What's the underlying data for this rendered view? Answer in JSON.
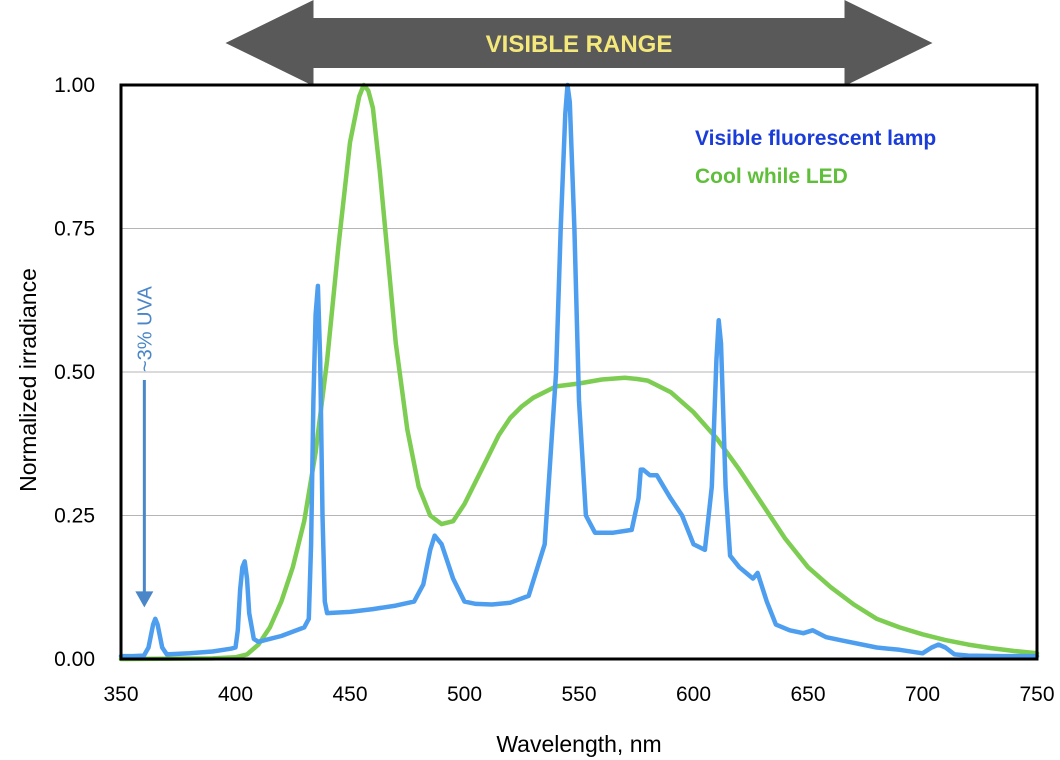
{
  "chart_data": {
    "type": "line",
    "title": "",
    "xlabel": "Wavelength, nm",
    "ylabel": "Normalized irradiance",
    "xlim": [
      350,
      750
    ],
    "ylim": [
      0,
      1
    ],
    "x_ticks": [
      "350",
      "400",
      "450",
      "500",
      "550",
      "600",
      "650",
      "700",
      "750"
    ],
    "y_ticks": [
      "0.00",
      "0.25",
      "0.50",
      "0.75",
      "1.00"
    ],
    "grid": "horizontal",
    "legend_position": "top-right",
    "banner": {
      "label": "VISIBLE RANGE",
      "x_start": 400,
      "x_end": 700,
      "fill_color": "#595959",
      "text_color": "#f5e87a"
    },
    "annotation": {
      "text": "~3% UVA",
      "x": 365,
      "y": 0.09,
      "color": "#4a86c8"
    },
    "series": [
      {
        "name": "Visible fluorescent lamp",
        "color": "#4e9ef0",
        "legend_color": "#1a3cd8",
        "points": [
          [
            350,
            0.005
          ],
          [
            355,
            0.005
          ],
          [
            360,
            0.006
          ],
          [
            362,
            0.02
          ],
          [
            364,
            0.06
          ],
          [
            365,
            0.07
          ],
          [
            366,
            0.06
          ],
          [
            368,
            0.02
          ],
          [
            370,
            0.008
          ],
          [
            380,
            0.01
          ],
          [
            390,
            0.013
          ],
          [
            398,
            0.018
          ],
          [
            400,
            0.02
          ],
          [
            401,
            0.05
          ],
          [
            402,
            0.12
          ],
          [
            403,
            0.16
          ],
          [
            404,
            0.17
          ],
          [
            405,
            0.14
          ],
          [
            406,
            0.08
          ],
          [
            408,
            0.035
          ],
          [
            410,
            0.03
          ],
          [
            420,
            0.04
          ],
          [
            430,
            0.055
          ],
          [
            432,
            0.07
          ],
          [
            433,
            0.2
          ],
          [
            434,
            0.45
          ],
          [
            435,
            0.6
          ],
          [
            436,
            0.65
          ],
          [
            437,
            0.52
          ],
          [
            438,
            0.25
          ],
          [
            439,
            0.1
          ],
          [
            440,
            0.08
          ],
          [
            450,
            0.082
          ],
          [
            460,
            0.087
          ],
          [
            470,
            0.093
          ],
          [
            478,
            0.1
          ],
          [
            482,
            0.13
          ],
          [
            485,
            0.19
          ],
          [
            487,
            0.215
          ],
          [
            490,
            0.2
          ],
          [
            495,
            0.14
          ],
          [
            500,
            0.1
          ],
          [
            505,
            0.096
          ],
          [
            512,
            0.095
          ],
          [
            520,
            0.098
          ],
          [
            528,
            0.11
          ],
          [
            535,
            0.2
          ],
          [
            540,
            0.5
          ],
          [
            542,
            0.75
          ],
          [
            544,
            0.95
          ],
          [
            545,
            1.0
          ],
          [
            546,
            0.97
          ],
          [
            548,
            0.75
          ],
          [
            550,
            0.45
          ],
          [
            553,
            0.25
          ],
          [
            557,
            0.22
          ],
          [
            565,
            0.22
          ],
          [
            573,
            0.225
          ],
          [
            576,
            0.28
          ],
          [
            577,
            0.33
          ],
          [
            578,
            0.33
          ],
          [
            581,
            0.32
          ],
          [
            584,
            0.32
          ],
          [
            587,
            0.3
          ],
          [
            590,
            0.28
          ],
          [
            595,
            0.25
          ],
          [
            600,
            0.2
          ],
          [
            605,
            0.19
          ],
          [
            608,
            0.3
          ],
          [
            610,
            0.52
          ],
          [
            611,
            0.59
          ],
          [
            612,
            0.55
          ],
          [
            614,
            0.3
          ],
          [
            616,
            0.18
          ],
          [
            620,
            0.16
          ],
          [
            626,
            0.14
          ],
          [
            628,
            0.15
          ],
          [
            632,
            0.1
          ],
          [
            636,
            0.06
          ],
          [
            642,
            0.05
          ],
          [
            648,
            0.045
          ],
          [
            652,
            0.05
          ],
          [
            658,
            0.038
          ],
          [
            665,
            0.032
          ],
          [
            680,
            0.02
          ],
          [
            690,
            0.016
          ],
          [
            700,
            0.01
          ],
          [
            704,
            0.02
          ],
          [
            707,
            0.025
          ],
          [
            710,
            0.02
          ],
          [
            714,
            0.008
          ],
          [
            720,
            0.006
          ],
          [
            735,
            0.005
          ],
          [
            750,
            0.005
          ]
        ]
      },
      {
        "name": "Cool while LED",
        "color": "#7ccd52",
        "legend_color": "#5fbf3a",
        "points": [
          [
            350,
            0.0
          ],
          [
            390,
            0.001
          ],
          [
            400,
            0.003
          ],
          [
            405,
            0.008
          ],
          [
            410,
            0.025
          ],
          [
            415,
            0.055
          ],
          [
            420,
            0.1
          ],
          [
            425,
            0.16
          ],
          [
            430,
            0.24
          ],
          [
            435,
            0.36
          ],
          [
            440,
            0.52
          ],
          [
            445,
            0.72
          ],
          [
            450,
            0.9
          ],
          [
            454,
            0.98
          ],
          [
            456,
            1.0
          ],
          [
            458,
            0.99
          ],
          [
            460,
            0.96
          ],
          [
            463,
            0.85
          ],
          [
            467,
            0.68
          ],
          [
            470,
            0.55
          ],
          [
            475,
            0.4
          ],
          [
            480,
            0.3
          ],
          [
            485,
            0.25
          ],
          [
            490,
            0.235
          ],
          [
            495,
            0.24
          ],
          [
            500,
            0.27
          ],
          [
            505,
            0.31
          ],
          [
            510,
            0.35
          ],
          [
            515,
            0.39
          ],
          [
            520,
            0.42
          ],
          [
            525,
            0.44
          ],
          [
            530,
            0.455
          ],
          [
            540,
            0.475
          ],
          [
            550,
            0.48
          ],
          [
            560,
            0.487
          ],
          [
            570,
            0.49
          ],
          [
            575,
            0.488
          ],
          [
            580,
            0.485
          ],
          [
            590,
            0.465
          ],
          [
            600,
            0.43
          ],
          [
            610,
            0.385
          ],
          [
            620,
            0.33
          ],
          [
            630,
            0.27
          ],
          [
            640,
            0.21
          ],
          [
            650,
            0.16
          ],
          [
            660,
            0.125
          ],
          [
            670,
            0.095
          ],
          [
            680,
            0.07
          ],
          [
            690,
            0.055
          ],
          [
            700,
            0.043
          ],
          [
            710,
            0.033
          ],
          [
            720,
            0.025
          ],
          [
            730,
            0.019
          ],
          [
            740,
            0.014
          ],
          [
            750,
            0.01
          ]
        ]
      }
    ]
  }
}
